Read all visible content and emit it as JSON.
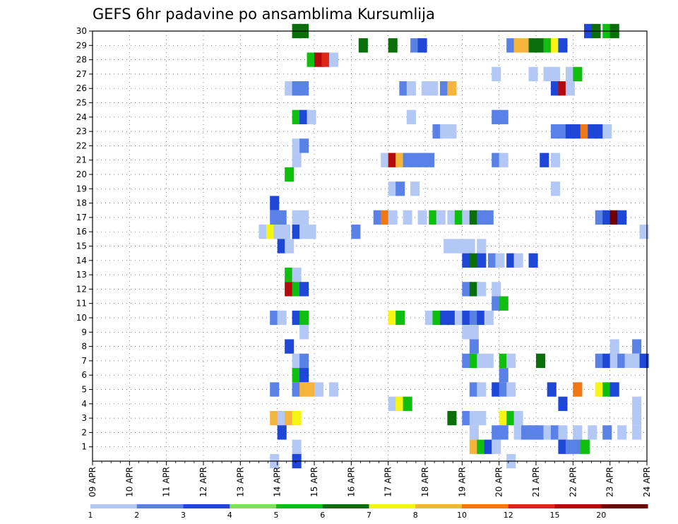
{
  "chart_data": {
    "type": "heatmap",
    "title": "GEFS 6hr padavine po ansamblima Kursumlija",
    "xlabel": "",
    "ylabel": "",
    "x_ticks": [
      "09 APR",
      "10 APR",
      "11 APR",
      "12 APR",
      "13 APR",
      "14 APR",
      "15 APR",
      "16 APR",
      "17 APR",
      "18 APR",
      "19 APR",
      "20 APR",
      "21 APR",
      "22 APR",
      "23 APR",
      "24 APR"
    ],
    "y_ticks": [
      "1",
      "2",
      "3",
      "4",
      "5",
      "6",
      "7",
      "8",
      "9",
      "10",
      "11",
      "12",
      "13",
      "14",
      "15",
      "16",
      "17",
      "18",
      "19",
      "20",
      "21",
      "22",
      "23",
      "24",
      "25",
      "26",
      "27",
      "28",
      "29",
      "30"
    ],
    "x_range_days": [
      0,
      15
    ],
    "y_range": [
      0,
      30
    ],
    "step_days": 0.25,
    "grid": true,
    "legend": {
      "placement": "bottom",
      "levels": [
        "1",
        "2",
        "3",
        "4",
        "5",
        "6",
        "7",
        "8",
        "10",
        "12",
        "15",
        "20"
      ],
      "colors": [
        "#b4c8f5",
        "#5a82e6",
        "#1e46d7",
        "#78e650",
        "#10be10",
        "#0a6e0a",
        "#f5f514",
        "#f5b43c",
        "#f07814",
        "#dc2814",
        "#b40a0a",
        "#6e0000"
      ]
    },
    "cells": [
      {
        "member": 30,
        "cells": [
          [
            5.4,
            6
          ],
          [
            5.6,
            6
          ],
          [
            13.3,
            3
          ],
          [
            13.5,
            6
          ],
          [
            13.8,
            5
          ],
          [
            14.0,
            6
          ]
        ]
      },
      {
        "member": 29,
        "cells": [
          [
            7.2,
            6
          ],
          [
            8.0,
            6
          ],
          [
            8.6,
            2
          ],
          [
            8.8,
            3
          ],
          [
            11.2,
            2
          ],
          [
            11.4,
            8
          ],
          [
            11.6,
            8
          ],
          [
            11.8,
            6
          ],
          [
            12.0,
            6
          ],
          [
            12.2,
            5
          ],
          [
            12.4,
            7
          ],
          [
            12.6,
            3
          ]
        ]
      },
      {
        "member": 28,
        "cells": [
          [
            5.8,
            5
          ],
          [
            6.0,
            11
          ],
          [
            6.2,
            10
          ],
          [
            6.4,
            1
          ]
        ]
      },
      {
        "member": 27,
        "cells": [
          [
            10.8,
            1
          ],
          [
            11.8,
            1
          ],
          [
            12.2,
            1
          ],
          [
            12.4,
            1
          ],
          [
            12.8,
            1
          ],
          [
            13.0,
            5
          ]
        ]
      },
      {
        "member": 26,
        "cells": [
          [
            5.2,
            1
          ],
          [
            5.4,
            2
          ],
          [
            5.6,
            2
          ],
          [
            8.3,
            2
          ],
          [
            8.5,
            1
          ],
          [
            8.9,
            1
          ],
          [
            9.1,
            1
          ],
          [
            9.4,
            2
          ],
          [
            9.6,
            8
          ],
          [
            12.4,
            3
          ],
          [
            12.6,
            11
          ],
          [
            12.8,
            1
          ]
        ]
      },
      {
        "member": 24,
        "cells": [
          [
            5.4,
            5
          ],
          [
            5.6,
            3
          ],
          [
            5.8,
            1
          ],
          [
            8.5,
            1
          ],
          [
            10.8,
            2
          ],
          [
            11.0,
            2
          ]
        ]
      },
      {
        "member": 23,
        "cells": [
          [
            9.2,
            2
          ],
          [
            9.4,
            1
          ],
          [
            9.6,
            1
          ],
          [
            12.4,
            2
          ],
          [
            12.6,
            2
          ],
          [
            12.8,
            3
          ],
          [
            13.0,
            3
          ],
          [
            13.2,
            9
          ],
          [
            13.4,
            3
          ],
          [
            13.6,
            3
          ],
          [
            13.8,
            1
          ]
        ]
      },
      {
        "member": 22,
        "cells": [
          [
            5.4,
            1
          ],
          [
            5.6,
            2
          ]
        ]
      },
      {
        "member": 21,
        "cells": [
          [
            5.4,
            1
          ],
          [
            7.8,
            1
          ],
          [
            8.0,
            11
          ],
          [
            8.2,
            8
          ],
          [
            8.4,
            2
          ],
          [
            8.6,
            2
          ],
          [
            8.8,
            2
          ],
          [
            9.0,
            2
          ],
          [
            10.8,
            2
          ],
          [
            11.0,
            1
          ],
          [
            12.1,
            3
          ],
          [
            12.4,
            1
          ]
        ]
      },
      {
        "member": 20,
        "cells": [
          [
            5.2,
            5
          ]
        ]
      },
      {
        "member": 19,
        "cells": [
          [
            8.0,
            1
          ],
          [
            8.2,
            2
          ],
          [
            8.6,
            1
          ],
          [
            12.4,
            1
          ]
        ]
      },
      {
        "member": 18,
        "cells": [
          [
            4.8,
            3
          ]
        ]
      },
      {
        "member": 17,
        "cells": [
          [
            4.8,
            2
          ],
          [
            5.0,
            2
          ],
          [
            5.4,
            1
          ],
          [
            5.6,
            1
          ],
          [
            7.6,
            2
          ],
          [
            7.8,
            9
          ],
          [
            8.0,
            1
          ],
          [
            8.4,
            1
          ],
          [
            8.8,
            1
          ],
          [
            9.1,
            5
          ],
          [
            9.3,
            1
          ],
          [
            9.6,
            1
          ],
          [
            9.8,
            5
          ],
          [
            10.0,
            1
          ],
          [
            10.2,
            6
          ],
          [
            10.4,
            2
          ],
          [
            10.6,
            2
          ],
          [
            13.6,
            2
          ],
          [
            13.8,
            3
          ],
          [
            14.0,
            12
          ],
          [
            14.2,
            3
          ]
        ]
      },
      {
        "member": 16,
        "cells": [
          [
            4.5,
            1
          ],
          [
            4.7,
            7
          ],
          [
            4.9,
            1
          ],
          [
            5.1,
            1
          ],
          [
            5.4,
            3
          ],
          [
            5.6,
            1
          ],
          [
            5.8,
            1
          ],
          [
            7.0,
            2
          ],
          [
            14.8,
            1
          ]
        ]
      },
      {
        "member": 15,
        "cells": [
          [
            5.0,
            3
          ],
          [
            5.2,
            1
          ],
          [
            9.5,
            1
          ],
          [
            9.7,
            1
          ],
          [
            9.9,
            1
          ],
          [
            10.1,
            1
          ],
          [
            10.4,
            1
          ]
        ]
      },
      {
        "member": 14,
        "cells": [
          [
            10.0,
            3
          ],
          [
            10.2,
            6
          ],
          [
            10.4,
            3
          ],
          [
            10.7,
            2
          ],
          [
            10.9,
            1
          ],
          [
            11.2,
            3
          ],
          [
            11.4,
            1
          ],
          [
            11.8,
            3
          ]
        ]
      },
      {
        "member": 13,
        "cells": [
          [
            5.2,
            5
          ],
          [
            5.4,
            1
          ]
        ]
      },
      {
        "member": 12,
        "cells": [
          [
            5.2,
            11
          ],
          [
            5.4,
            5
          ],
          [
            5.6,
            3
          ],
          [
            10.0,
            2
          ],
          [
            10.2,
            6
          ],
          [
            10.4,
            1
          ],
          [
            10.8,
            1
          ]
        ]
      },
      {
        "member": 11,
        "cells": [
          [
            10.8,
            2
          ],
          [
            11.0,
            5
          ]
        ]
      },
      {
        "member": 10,
        "cells": [
          [
            4.8,
            2
          ],
          [
            5.0,
            1
          ],
          [
            5.4,
            3
          ],
          [
            5.6,
            5
          ],
          [
            8.0,
            7
          ],
          [
            8.2,
            5
          ],
          [
            9.0,
            1
          ],
          [
            9.2,
            5
          ],
          [
            9.4,
            3
          ],
          [
            9.6,
            3
          ],
          [
            9.8,
            1
          ],
          [
            10.0,
            3
          ],
          [
            10.2,
            2
          ],
          [
            10.4,
            3
          ],
          [
            10.6,
            1
          ]
        ]
      },
      {
        "member": 9,
        "cells": [
          [
            5.6,
            1
          ],
          [
            10.0,
            1
          ],
          [
            10.2,
            1
          ]
        ]
      },
      {
        "member": 8,
        "cells": [
          [
            5.2,
            3
          ],
          [
            10.2,
            2
          ],
          [
            14.0,
            1
          ],
          [
            14.6,
            2
          ]
        ]
      },
      {
        "member": 7,
        "cells": [
          [
            5.4,
            1
          ],
          [
            5.6,
            2
          ],
          [
            10.0,
            2
          ],
          [
            10.2,
            5
          ],
          [
            10.4,
            1
          ],
          [
            10.6,
            1
          ],
          [
            11.0,
            5
          ],
          [
            11.2,
            1
          ],
          [
            12.0,
            6
          ],
          [
            13.6,
            2
          ],
          [
            13.8,
            3
          ],
          [
            14.0,
            1
          ],
          [
            14.2,
            2
          ],
          [
            14.4,
            1
          ],
          [
            14.6,
            1
          ],
          [
            14.8,
            3
          ]
        ]
      },
      {
        "member": 6,
        "cells": [
          [
            5.4,
            5
          ],
          [
            5.6,
            3
          ],
          [
            11.0,
            2
          ]
        ]
      },
      {
        "member": 5,
        "cells": [
          [
            4.8,
            2
          ],
          [
            5.4,
            2
          ],
          [
            5.6,
            8
          ],
          [
            5.8,
            8
          ],
          [
            6.0,
            1
          ],
          [
            6.4,
            1
          ],
          [
            10.2,
            2
          ],
          [
            10.4,
            1
          ],
          [
            10.8,
            3
          ],
          [
            11.0,
            2
          ],
          [
            11.2,
            1
          ],
          [
            12.3,
            3
          ],
          [
            13.0,
            9
          ],
          [
            13.6,
            7
          ],
          [
            13.8,
            5
          ],
          [
            14.0,
            3
          ]
        ]
      },
      {
        "member": 4,
        "cells": [
          [
            8.0,
            1
          ],
          [
            8.2,
            7
          ],
          [
            8.4,
            5
          ],
          [
            12.6,
            3
          ],
          [
            14.6,
            1
          ]
        ]
      },
      {
        "member": 3,
        "cells": [
          [
            4.8,
            8
          ],
          [
            5.0,
            1
          ],
          [
            5.2,
            8
          ],
          [
            5.4,
            7
          ],
          [
            9.6,
            6
          ],
          [
            10.0,
            2
          ],
          [
            10.2,
            1
          ],
          [
            10.4,
            1
          ],
          [
            11.0,
            7
          ],
          [
            11.2,
            5
          ],
          [
            11.4,
            1
          ],
          [
            14.6,
            1
          ]
        ]
      },
      {
        "member": 2,
        "cells": [
          [
            5.0,
            3
          ],
          [
            10.2,
            1
          ],
          [
            10.8,
            2
          ],
          [
            11.0,
            2
          ],
          [
            11.4,
            1
          ],
          [
            11.6,
            2
          ],
          [
            11.8,
            2
          ],
          [
            12.0,
            2
          ],
          [
            12.2,
            1
          ],
          [
            12.4,
            2
          ],
          [
            12.6,
            1
          ],
          [
            13.0,
            1
          ],
          [
            13.4,
            1
          ],
          [
            13.8,
            2
          ],
          [
            14.2,
            1
          ],
          [
            14.6,
            1
          ]
        ]
      },
      {
        "member": 1,
        "cells": [
          [
            5.4,
            1
          ],
          [
            10.2,
            8
          ],
          [
            10.4,
            5
          ],
          [
            10.6,
            3
          ],
          [
            10.8,
            1
          ],
          [
            12.6,
            3
          ],
          [
            12.8,
            2
          ],
          [
            13.0,
            2
          ],
          [
            13.2,
            5
          ]
        ]
      },
      {
        "member": 0,
        "cells": [
          [
            4.8,
            1
          ],
          [
            5.4,
            3
          ],
          [
            11.2,
            1
          ]
        ]
      }
    ]
  }
}
